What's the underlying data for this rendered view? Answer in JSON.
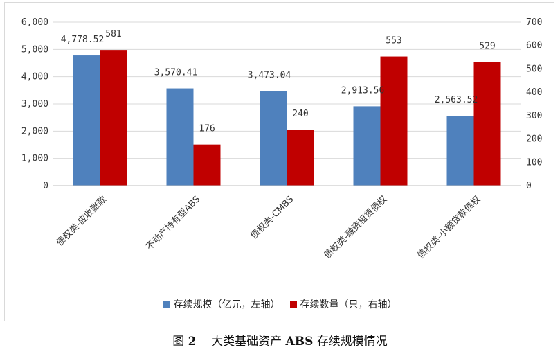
{
  "chart_data": {
    "type": "bar",
    "categories": [
      "债权类-应收账款",
      "不动产持有型ABS",
      "债权类-CMBS",
      "债权类-融资租赁债权",
      "债权类-小额贷款债权"
    ],
    "series": [
      {
        "name": "存续规模（亿元，左轴）",
        "values": [
          4778.52,
          3570.41,
          3473.04,
          2913.56,
          2563.52
        ],
        "labels": [
          "4,778.52",
          "3,570.41",
          "3,473.04",
          "2,913.56",
          "2,563.52"
        ],
        "axis": "left",
        "color": "#4f81bd"
      },
      {
        "name": "存续数量（只，右轴）",
        "values": [
          581,
          176,
          240,
          553,
          529
        ],
        "labels": [
          "581",
          "176",
          "240",
          "553",
          "529"
        ],
        "axis": "right",
        "color": "#c00000"
      }
    ],
    "y_left": {
      "ylim": [
        0,
        6000
      ],
      "ticks": [
        "0",
        "1,000",
        "2,000",
        "3,000",
        "4,000",
        "5,000",
        "6,000"
      ]
    },
    "y_right": {
      "ylim": [
        0,
        700
      ],
      "ticks": [
        "0",
        "100",
        "200",
        "300",
        "400",
        "500",
        "600",
        "700"
      ]
    },
    "grid": true,
    "legend_position": "bottom"
  },
  "caption": {
    "prefix": "图",
    "number": "2",
    "text_before": "大类基础资产",
    "abs": "ABS",
    "text_after": "存续规模情况"
  }
}
